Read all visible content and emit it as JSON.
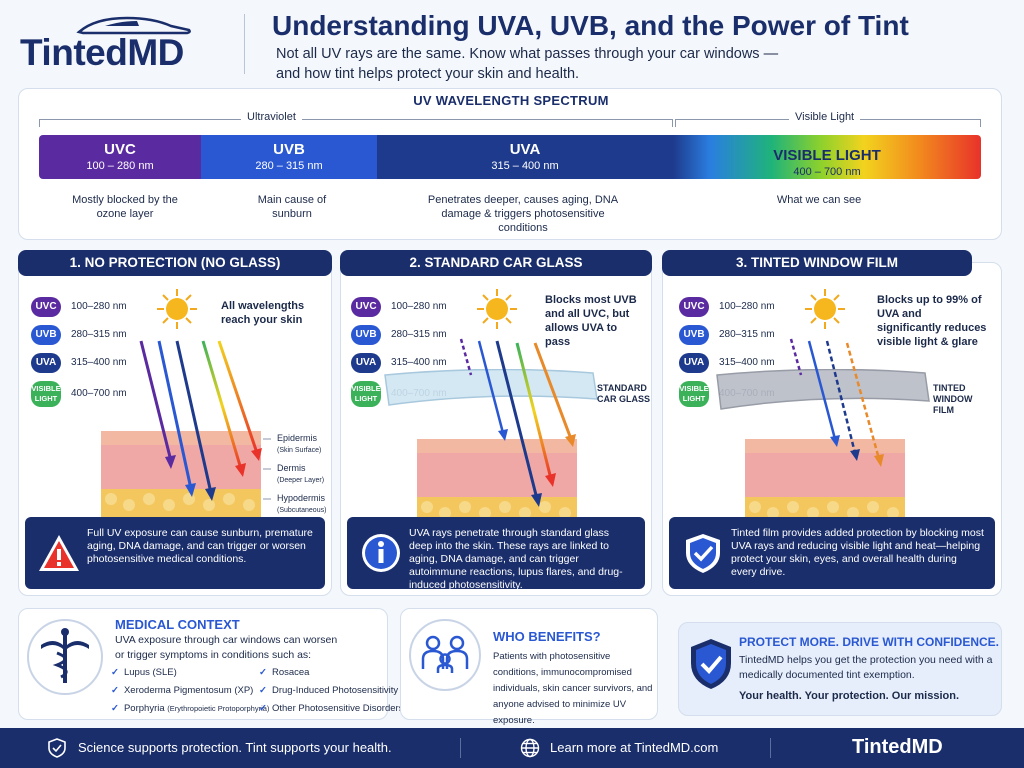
{
  "header": {
    "logo_text": "TintedMD",
    "title": "Understanding UVA, UVB, and the Power of Tint",
    "subtitle": "Not all UV rays are the same. Know what passes through your car windows — and how tint helps protect your skin and health."
  },
  "spectrum": {
    "title": "UV WAVELENGTH SPECTRUM",
    "regions": [
      "Ultraviolet",
      "Visible Light"
    ],
    "segments": [
      {
        "name": "UVC",
        "range": "100 – 280 nm",
        "description": "Mostly blocked by the ozone layer",
        "color": "#5a2aa0"
      },
      {
        "name": "UVB",
        "range": "280 – 315 nm",
        "description": "Main cause of sunburn",
        "color": "#2a58d2"
      },
      {
        "name": "UVA",
        "range": "315 – 400 nm",
        "description": "Penetrates deeper, causes aging, DNA damage & triggers photosensitive conditions",
        "color": "#1e3a8c"
      },
      {
        "name": "VISIBLE LIGHT",
        "range": "400 – 700 nm",
        "description": "What we can see",
        "color": "gradient"
      }
    ]
  },
  "radiation_rows": [
    {
      "pill": "UVC",
      "range": "100–280 nm"
    },
    {
      "pill": "UVB",
      "range": "280–315 nm"
    },
    {
      "pill": "UVA",
      "range": "315–400 nm"
    },
    {
      "pill": "VISIBLE LIGHT",
      "range": "400–700 nm"
    }
  ],
  "panels": [
    {
      "heading": "1. NO PROTECTION (NO GLASS)",
      "note": "All wavelengths reach your skin",
      "skin_layers": [
        {
          "name": "Epidermis",
          "sub": "(Skin Surface)"
        },
        {
          "name": "Dermis",
          "sub": "(Deeper Layer)"
        },
        {
          "name": "Hypodermis",
          "sub": "(Subcutaneous)"
        }
      ],
      "info": "Full UV exposure can cause sunburn, premature aging, DNA damage, and can trigger or worsen photosensitive medical conditions."
    },
    {
      "heading": "2. STANDARD CAR GLASS",
      "note": "Blocks most UVB and all UVC, but allows UVA to pass",
      "glass_label": "STANDARD CAR GLASS",
      "info": "UVA rays penetrate through standard glass deep into the skin. These rays are linked to aging, DNA damage, and can trigger autoimmune reactions, lupus flares, and drug-induced photosensitivity."
    },
    {
      "heading": "3. TINTED WINDOW FILM",
      "note": "Blocks up to 99% of UVA and significantly reduces visible light & glare",
      "glass_label": "TINTED WINDOW FILM",
      "info": "Tinted film provides added protection by blocking most UVA rays and reducing visible light and heat—helping protect your skin, eyes, and overall health during every drive."
    }
  ],
  "medical": {
    "title": "MEDICAL CONTEXT",
    "intro": "UVA exposure through car windows can worsen or trigger symptoms in conditions such as:",
    "conditions": [
      {
        "name": "Lupus (SLE)",
        "sub": ""
      },
      {
        "name": "Rosacea",
        "sub": ""
      },
      {
        "name": "Xeroderma Pigmentosum (XP)",
        "sub": ""
      },
      {
        "name": "Drug-Induced Photosensitivity",
        "sub": ""
      },
      {
        "name": "Porphyria",
        "sub": "(Erythropoietic Protoporphyria)"
      },
      {
        "name": "Other Photosensitive Disorders",
        "sub": ""
      }
    ]
  },
  "benefits": {
    "title": "WHO BENEFITS?",
    "text": "Patients with photosensitive conditions, immunocompromised individuals, skin cancer survivors, and anyone advised to minimize UV exposure."
  },
  "protect": {
    "title": "PROTECT MORE. DRIVE WITH CONFIDENCE.",
    "text": "TintedMD helps you get the protection you need with a medically documented tint exemption.",
    "tagline": "Your health. Your protection. Our mission."
  },
  "footer": {
    "left": "Science supports protection. Tint supports your health.",
    "middle": "Learn more at TintedMD.com",
    "logo": "TintedMD"
  }
}
